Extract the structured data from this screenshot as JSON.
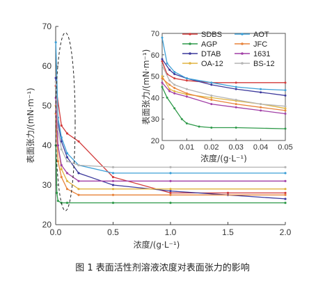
{
  "caption": "图 1  表面活性剂溶液浓度对表面张力的影响",
  "chart_data": [
    {
      "type": "line",
      "xlabel": "浓度/(g·L⁻¹)",
      "ylabel": "表面张力/(mN·m⁻¹)",
      "xlim": [
        0,
        2.0
      ],
      "ylim": [
        20,
        70
      ],
      "xticks": [
        "0.0",
        "0.5",
        "1.0",
        "1.5",
        "2.0"
      ],
      "yticks": [
        "20",
        "30",
        "40",
        "50",
        "60",
        "70"
      ],
      "annotation": "dashed ellipse around the low-concentration region",
      "series": [
        {
          "name": "SDBS",
          "color": "#d23a3a",
          "x": [
            0.001,
            0.05,
            0.1,
            0.2,
            0.5,
            1.0,
            1.5,
            2.0
          ],
          "y": [
            55,
            45,
            43,
            41,
            32,
            28,
            28,
            28
          ]
        },
        {
          "name": "AGP",
          "color": "#2f9a4a",
          "x": [
            0.001,
            0.01,
            0.02,
            0.05,
            0.1,
            0.5,
            1.0,
            2.0
          ],
          "y": [
            40,
            28,
            26,
            25.5,
            25.5,
            25.5,
            25.5,
            25.5
          ]
        },
        {
          "name": "DTAB",
          "color": "#3d3a9c",
          "x": [
            0.001,
            0.02,
            0.05,
            0.1,
            0.2,
            0.5,
            1.0,
            1.5,
            2.0
          ],
          "y": [
            57,
            46,
            41,
            37,
            33,
            30,
            28.5,
            27.5,
            26.5
          ]
        },
        {
          "name": "OA-12",
          "color": "#e0b340",
          "x": [
            0.001,
            0.02,
            0.05,
            0.1,
            0.2,
            0.5,
            1.0,
            2.0
          ],
          "y": [
            50,
            40,
            34,
            31,
            29,
            29,
            29,
            29
          ]
        },
        {
          "name": "AOT",
          "color": "#3d9fd6",
          "x": [
            0.001,
            0.02,
            0.05,
            0.1,
            0.2,
            0.5,
            1.0,
            2.0
          ],
          "y": [
            66,
            47,
            42,
            38,
            35,
            33,
            33,
            33
          ]
        },
        {
          "name": "JFC",
          "color": "#e8833a",
          "x": [
            0.001,
            0.02,
            0.05,
            0.1,
            0.2,
            0.5,
            1.0,
            2.0
          ],
          "y": [
            48,
            36,
            32,
            29,
            27.5,
            27.5,
            27.5,
            27.5
          ]
        },
        {
          "name": "1631",
          "color": "#a13fa6",
          "x": [
            0.001,
            0.02,
            0.05,
            0.1,
            0.2,
            0.5,
            1.0,
            2.0
          ],
          "y": [
            52,
            40,
            35,
            33,
            31,
            31,
            31,
            31
          ]
        },
        {
          "name": "BS-12",
          "color": "#b4b4b4",
          "x": [
            0.001,
            0.02,
            0.05,
            0.1,
            0.2,
            0.5,
            1.0,
            2.0
          ],
          "y": [
            56,
            44,
            39,
            36,
            35,
            34.5,
            34.5,
            34.5
          ]
        }
      ]
    },
    {
      "type": "line",
      "xlabel": "浓度/(g·L⁻¹)",
      "ylabel": "表面张力/(mN·m⁻¹)",
      "xlim": [
        0,
        0.05
      ],
      "ylim": [
        20,
        70
      ],
      "xticks": [
        "0",
        "0.01",
        "0.02",
        "0.03",
        "0.04",
        "0.05"
      ],
      "yticks": [
        "20",
        "30",
        "40",
        "50",
        "60",
        "70"
      ],
      "legend_position": "top",
      "series": [
        {
          "name": "SDBS",
          "color": "#d23a3a",
          "x": [
            0,
            0.002,
            0.005,
            0.01,
            0.02,
            0.03,
            0.05
          ],
          "y": [
            57,
            51,
            49,
            48,
            47,
            47,
            47
          ]
        },
        {
          "name": "AGP",
          "color": "#2f9a4a",
          "x": [
            0,
            0.002,
            0.005,
            0.008,
            0.01,
            0.015,
            0.02,
            0.03,
            0.05
          ],
          "y": [
            45,
            40,
            35,
            30,
            28,
            26.5,
            26,
            26,
            25.5
          ]
        },
        {
          "name": "DTAB",
          "color": "#3d3a9c",
          "x": [
            0,
            0.003,
            0.005,
            0.01,
            0.02,
            0.03,
            0.04,
            0.05
          ],
          "y": [
            58,
            53,
            51,
            49,
            46,
            44,
            42.5,
            41
          ]
        },
        {
          "name": "OA-12",
          "color": "#e0b340",
          "x": [
            0,
            0.003,
            0.005,
            0.01,
            0.02,
            0.03,
            0.04,
            0.05
          ],
          "y": [
            50,
            44,
            43,
            41.5,
            40,
            38.5,
            37,
            35
          ]
        },
        {
          "name": "AOT",
          "color": "#3d9fd6",
          "x": [
            0,
            0.002,
            0.005,
            0.01,
            0.02,
            0.03,
            0.04,
            0.05
          ],
          "y": [
            68,
            56,
            52,
            49,
            47,
            45,
            44,
            43.5
          ]
        },
        {
          "name": "JFC",
          "color": "#e8833a",
          "x": [
            0,
            0.003,
            0.005,
            0.01,
            0.02,
            0.03,
            0.04,
            0.05
          ],
          "y": [
            49,
            46,
            44.5,
            42,
            39,
            37,
            35.5,
            34
          ]
        },
        {
          "name": "1631",
          "color": "#a13fa6",
          "x": [
            0,
            0.003,
            0.005,
            0.01,
            0.02,
            0.03,
            0.04,
            0.05
          ],
          "y": [
            47,
            43,
            42,
            40.5,
            37,
            35.5,
            34,
            32.5
          ]
        },
        {
          "name": "BS-12",
          "color": "#b4b4b4",
          "x": [
            0,
            0.003,
            0.005,
            0.01,
            0.02,
            0.03,
            0.04,
            0.05
          ],
          "y": [
            55,
            48,
            46,
            44,
            41,
            39,
            37,
            36
          ]
        }
      ]
    }
  ]
}
